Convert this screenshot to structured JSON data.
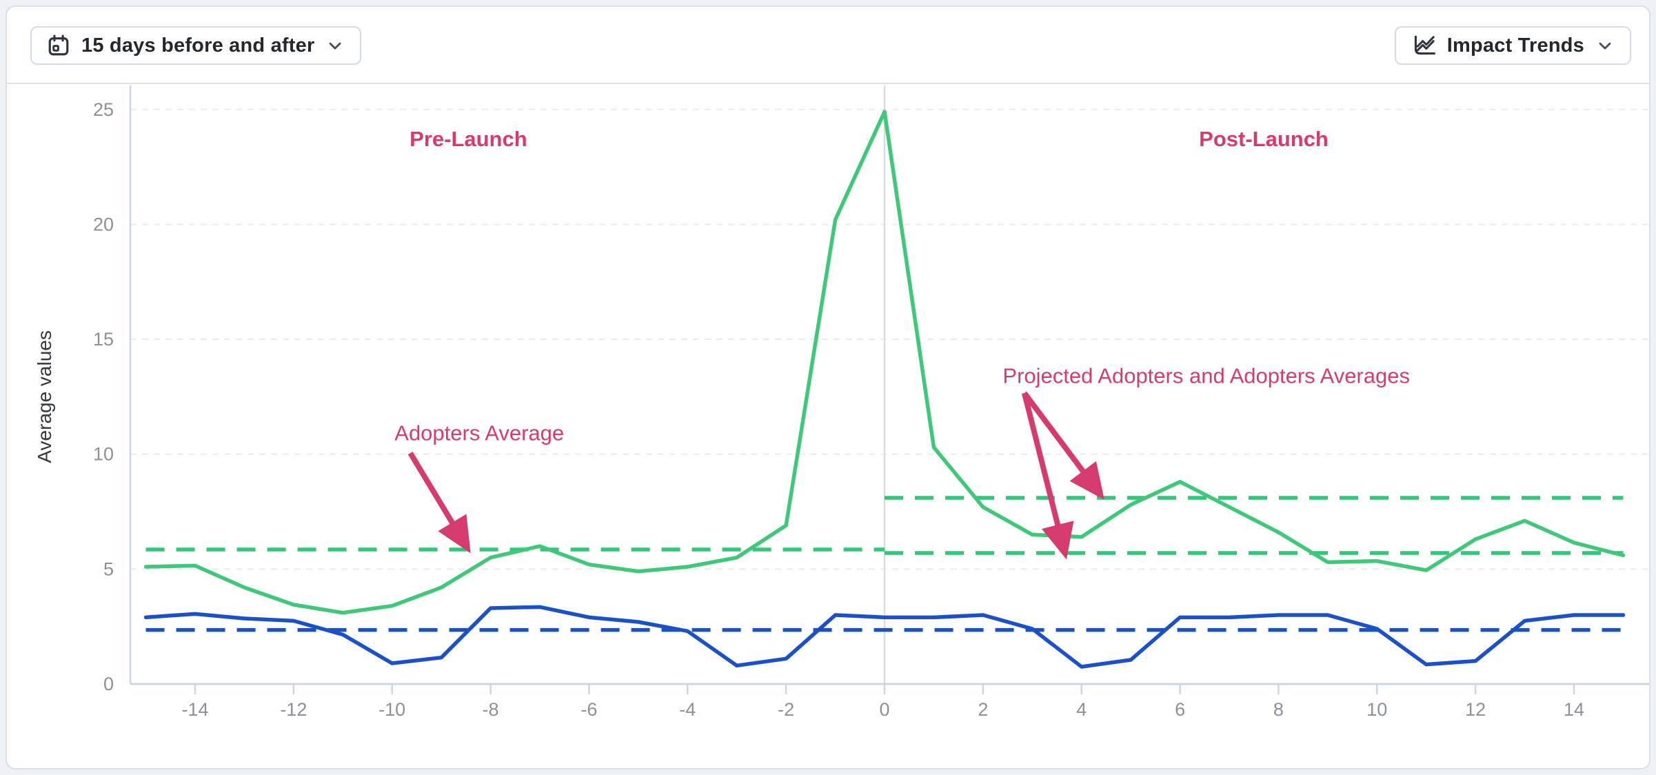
{
  "toolbar": {
    "date_range_button": {
      "label": "15 days before and after",
      "icon": "calendar-icon"
    },
    "trends_button": {
      "label": "Impact Trends",
      "icon": "trend-chart-icon"
    }
  },
  "colors": {
    "adopters_green": "#3ec878",
    "projected_blue": "#1b51c8",
    "annotation_pink": "#d63b70",
    "axis_line": "#ccd5e3",
    "gridline": "#e9ebef",
    "zero_vline": "#d9dce2",
    "tick_text": "#8b9099",
    "axis_title_text": "#33373e"
  },
  "chart_data": {
    "type": "line",
    "title": "",
    "xlabel": "",
    "ylabel": "Average values",
    "x_range": [
      -15,
      15
    ],
    "ylim": [
      0,
      25
    ],
    "x_ticks": [
      -14,
      -12,
      -10,
      -8,
      -6,
      -4,
      -2,
      0,
      2,
      4,
      6,
      8,
      10,
      12,
      14
    ],
    "y_ticks": [
      0,
      5,
      10,
      15,
      20,
      25
    ],
    "grid": "horizontal-dashed",
    "zero_vline_x": 0,
    "x": [
      -15,
      -14,
      -13,
      -12,
      -11,
      -10,
      -9,
      -8,
      -7,
      -6,
      -5,
      -4,
      -3,
      -2,
      -1,
      0,
      1,
      2,
      3,
      4,
      5,
      6,
      7,
      8,
      9,
      10,
      11,
      12,
      13,
      14,
      15
    ],
    "series": [
      {
        "name": "Adopters",
        "color": "#3ec878",
        "style": "solid",
        "values": [
          5.1,
          5.15,
          4.2,
          3.45,
          3.1,
          3.4,
          4.2,
          5.5,
          6.0,
          5.2,
          4.9,
          5.1,
          5.5,
          6.9,
          20.2,
          24.9,
          10.3,
          7.7,
          6.5,
          6.4,
          7.8,
          8.8,
          7.7,
          6.6,
          5.3,
          5.35,
          4.95,
          6.3,
          7.1,
          6.15,
          5.6
        ]
      },
      {
        "name": "Projected Adopters",
        "color": "#1b51c8",
        "style": "solid",
        "values": [
          2.9,
          3.05,
          2.85,
          2.75,
          2.15,
          0.9,
          1.15,
          3.3,
          3.35,
          2.9,
          2.7,
          2.3,
          0.8,
          1.1,
          3.0,
          2.9,
          2.9,
          3.0,
          2.4,
          0.75,
          1.05,
          2.9,
          2.9,
          3.0,
          3.0,
          2.4,
          0.85,
          1.0,
          2.75,
          3.0,
          3.0
        ]
      }
    ],
    "reference_lines": [
      {
        "color": "#1b51c8",
        "style": "dashed",
        "value": 2.35,
        "x_start": -15,
        "x_end": 15
      },
      {
        "color": "#2fc876",
        "style": "dashed",
        "value": 5.85,
        "x_start": -15,
        "x_end": 0
      },
      {
        "color": "#2fc876",
        "style": "dashed",
        "value": 5.7,
        "x_start": 0,
        "x_end": 15
      },
      {
        "color": "#2fc876",
        "style": "dashed",
        "value": 8.1,
        "x_start": 0,
        "x_end": 15
      }
    ],
    "annotations": {
      "labels": [
        {
          "id": "pre-launch-label",
          "text": "Pre-Launch",
          "bold": true,
          "anchor": "middle",
          "x": -8.45,
          "y": 23.4
        },
        {
          "id": "post-launch-label",
          "text": "Post-Launch",
          "bold": true,
          "anchor": "middle",
          "x": 7.7,
          "y": 23.4
        },
        {
          "id": "adopters-average-label",
          "text": "Adopters Average",
          "bold": false,
          "anchor": "start",
          "x": -9.95,
          "y": 10.6
        },
        {
          "id": "projected-averages-label",
          "text": "Projected Adopters and Adopters Averages",
          "bold": false,
          "anchor": "start",
          "x": 2.4,
          "y": 13.1
        }
      ],
      "arrows": [
        {
          "id": "adopters-average-arrow",
          "x1": -9.63,
          "y1": 10.05,
          "x2": -8.52,
          "y2": 6.1
        },
        {
          "id": "projected-upper-arrow",
          "x1": 2.84,
          "y1": 12.66,
          "x2": 4.33,
          "y2": 8.4
        },
        {
          "id": "projected-lower-arrow",
          "x1": 2.84,
          "y1": 12.66,
          "x2": 3.64,
          "y2": 5.88
        }
      ]
    }
  }
}
